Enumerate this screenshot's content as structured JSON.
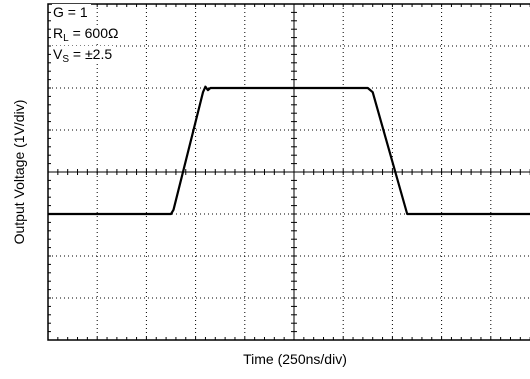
{
  "chart_data": {
    "type": "line",
    "title": "",
    "xlabel": "Time (250ns/div)",
    "ylabel": "Output Voltage (1V/div)",
    "x_divisions": 10,
    "y_divisions": 8,
    "grid": true,
    "annotations": {
      "gain": {
        "main": "G = 1"
      },
      "load": {
        "main": "R",
        "sub": "L",
        "rest": " = 600Ω"
      },
      "supply": {
        "main": "V",
        "sub": "S",
        "rest": " = ±2.5"
      }
    },
    "series": [
      {
        "x": [
          0,
          2.5,
          2.55,
          3.15,
          3.2,
          3.25,
          3.3,
          6.5,
          6.6,
          7.3,
          7.35,
          10
        ],
        "y": [
          -1,
          -1,
          -0.9,
          1.9,
          2.03,
          1.95,
          2.0,
          2.0,
          1.9,
          -1.0,
          -1.0,
          -1.0
        ]
      }
    ],
    "colors": {
      "trace": "#000000",
      "grid": "#000000"
    }
  }
}
